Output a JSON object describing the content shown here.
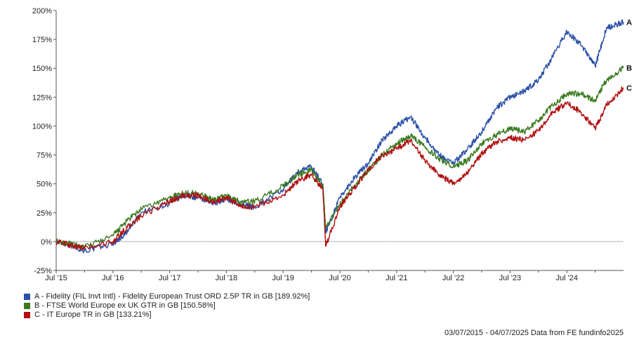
{
  "chart_data": {
    "type": "line",
    "ylim": [
      -25,
      200
    ],
    "y_ticks": [
      "-25%",
      "0%",
      "25%",
      "50%",
      "75%",
      "100%",
      "125%",
      "150%",
      "175%",
      "200%"
    ],
    "y_tick_values": [
      -25,
      0,
      25,
      50,
      75,
      100,
      125,
      150,
      175,
      200
    ],
    "x_ticks": [
      "Jul '15",
      "Jul '16",
      "Jul '17",
      "Jul '18",
      "Jul '19",
      "Jul '20",
      "Jul '21",
      "Jul '22",
      "Jul '23",
      "Jul '24"
    ],
    "x_tick_values": [
      2015.5,
      2016.5,
      2017.5,
      2018.5,
      2019.5,
      2020.5,
      2021.5,
      2022.5,
      2023.5,
      2024.5
    ],
    "xlim": [
      2015.5,
      2025.5
    ],
    "x": [
      2015.5,
      2015.75,
      2016.0,
      2016.5,
      2016.75,
      2017.0,
      2017.5,
      2017.75,
      2018.0,
      2018.25,
      2018.5,
      2018.75,
      2019.0,
      2019.5,
      2019.75,
      2020.0,
      2020.2,
      2020.25,
      2020.5,
      2020.75,
      2021.0,
      2021.25,
      2021.5,
      2021.75,
      2022.0,
      2022.25,
      2022.5,
      2022.75,
      2023.0,
      2023.25,
      2023.5,
      2023.75,
      2024.0,
      2024.25,
      2024.5,
      2024.75,
      2025.0,
      2025.2,
      2025.5
    ],
    "series": [
      {
        "name": "A - Fidelity (FIL Invt Intl) - Fidelity European Trust ORD 2.5P TR in GB [189.92%]",
        "end_label": "A",
        "color": "#2a4fa8",
        "values": [
          0,
          -3,
          -8,
          -2,
          8,
          25,
          33,
          40,
          38,
          33,
          37,
          32,
          30,
          45,
          60,
          65,
          50,
          8,
          38,
          55,
          68,
          88,
          100,
          108,
          90,
          75,
          68,
          80,
          95,
          115,
          125,
          130,
          140,
          160,
          182,
          170,
          152,
          185,
          189.92
        ]
      },
      {
        "name": "B - FTSE World Europe ex UK GTR in GB [150.58%]",
        "end_label": "B",
        "color": "#3a7a20",
        "values": [
          0,
          -2,
          -5,
          5,
          18,
          28,
          38,
          42,
          42,
          36,
          40,
          34,
          35,
          48,
          58,
          62,
          48,
          12,
          32,
          48,
          62,
          75,
          85,
          92,
          82,
          72,
          65,
          70,
          85,
          92,
          98,
          95,
          105,
          118,
          128,
          128,
          122,
          140,
          150.58
        ]
      },
      {
        "name": "C - IT Europe TR in GB [133.21%]",
        "end_label": "C",
        "color": "#b01010",
        "values": [
          0,
          -3,
          -6,
          0,
          12,
          22,
          35,
          40,
          40,
          34,
          38,
          30,
          30,
          40,
          52,
          58,
          45,
          -4,
          30,
          46,
          62,
          75,
          80,
          88,
          70,
          58,
          50,
          60,
          76,
          86,
          90,
          88,
          96,
          112,
          120,
          112,
          98,
          118,
          133.21
        ]
      }
    ]
  },
  "footer": "03/07/2015 - 04/07/2025 Data from FE fundinfo2025"
}
